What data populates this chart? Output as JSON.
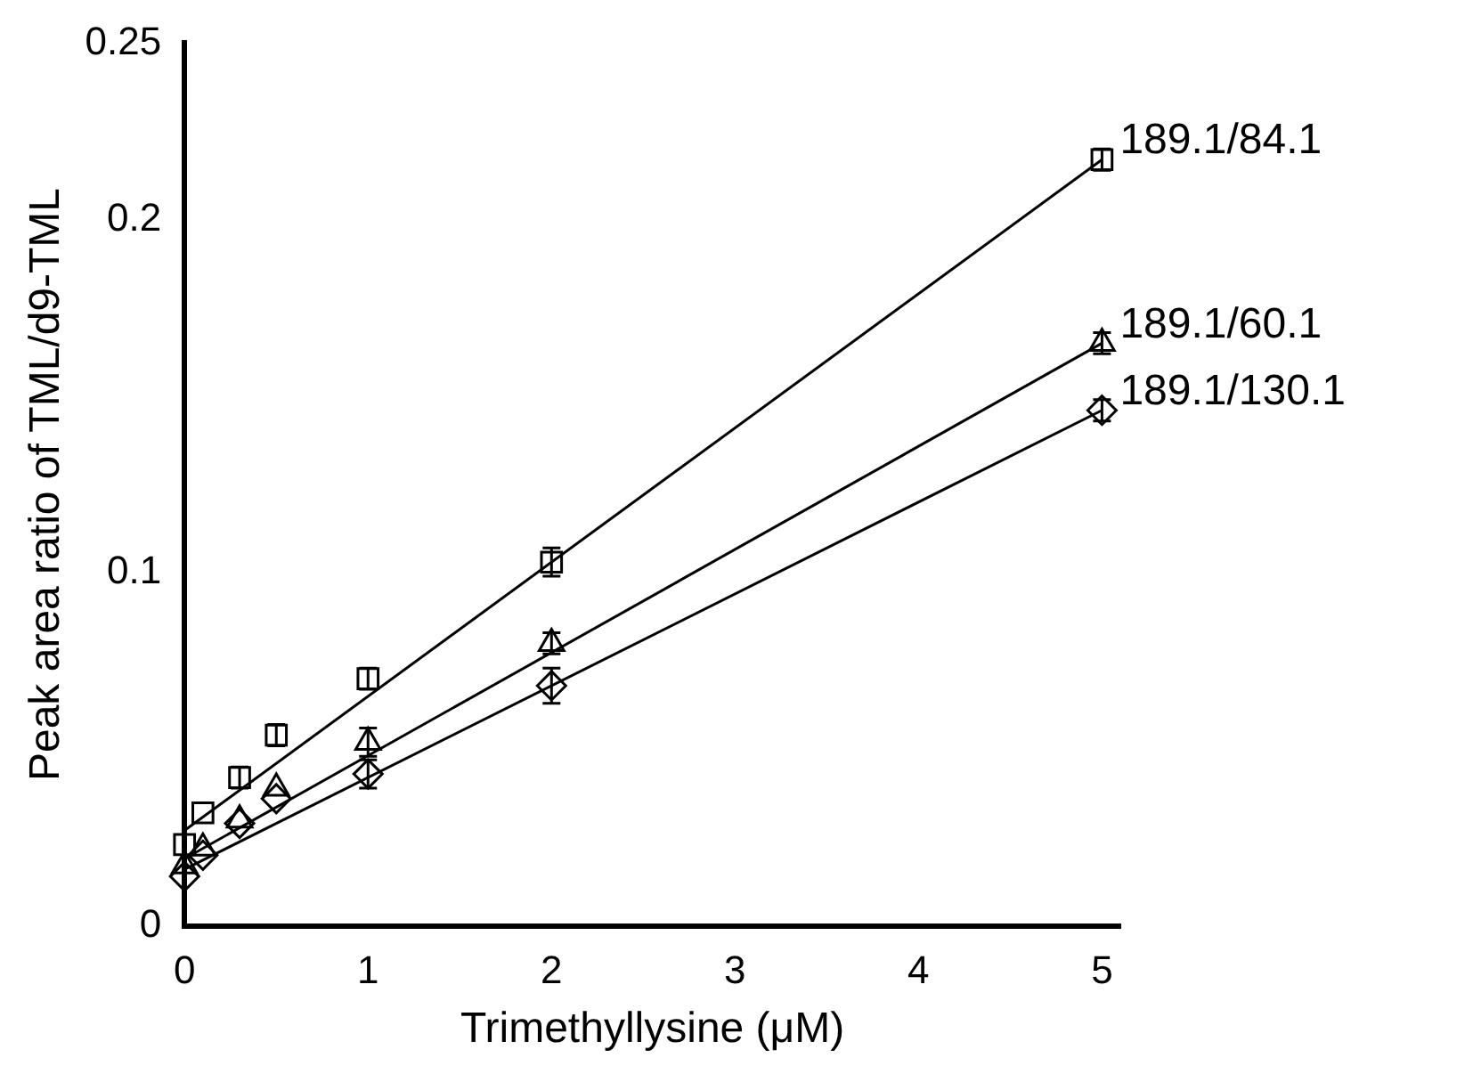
{
  "chart_data": {
    "type": "scatter",
    "xlabel": "Trimethyllysine (μM)",
    "ylabel": "Peak area ratio of TML/d9-TML",
    "xlim": [
      0,
      5.1
    ],
    "ylim": [
      0,
      0.25
    ],
    "xticks": [
      0,
      1,
      2,
      3,
      4,
      5
    ],
    "yticks": [
      0,
      0.1,
      0.2,
      0.25
    ],
    "grid": false,
    "legend": false,
    "series": [
      {
        "name": "189.1/84.1",
        "color": "#000000",
        "marker": "square",
        "x": [
          0,
          0.1,
          0.3,
          0.5,
          1,
          2,
          5
        ],
        "values": [
          0.023,
          0.032,
          0.042,
          0.054,
          0.07,
          0.103,
          0.217
        ],
        "errors": [
          null,
          null,
          0.003,
          0.003,
          0.003,
          0.004,
          0.003
        ]
      },
      {
        "name": "189.1/60.1",
        "color": "#000000",
        "marker": "triangle",
        "x": [
          0,
          0.1,
          0.3,
          0.5,
          1,
          2,
          5
        ],
        "values": [
          0.017,
          0.022,
          0.03,
          0.039,
          0.052,
          0.08,
          0.165
        ],
        "errors": [
          null,
          null,
          null,
          null,
          0.004,
          0.003,
          0.003
        ]
      },
      {
        "name": "189.1/130.1",
        "color": "#000000",
        "marker": "diamond",
        "x": [
          0,
          0.1,
          0.3,
          0.5,
          1,
          2,
          5
        ],
        "values": [
          0.014,
          0.02,
          0.029,
          0.036,
          0.043,
          0.068,
          0.146
        ],
        "errors": [
          null,
          null,
          null,
          null,
          0.004,
          0.005,
          0.003
        ]
      },
      {
        "type": "line",
        "color": "#000000",
        "x": [
          0,
          5
        ],
        "values": [
          0.027,
          0.217
        ]
      },
      {
        "type": "line",
        "color": "#000000",
        "x": [
          0,
          5
        ],
        "values": [
          0.019,
          0.165
        ]
      },
      {
        "type": "line",
        "color": "#000000",
        "x": [
          0,
          5
        ],
        "values": [
          0.016,
          0.146
        ]
      }
    ]
  }
}
